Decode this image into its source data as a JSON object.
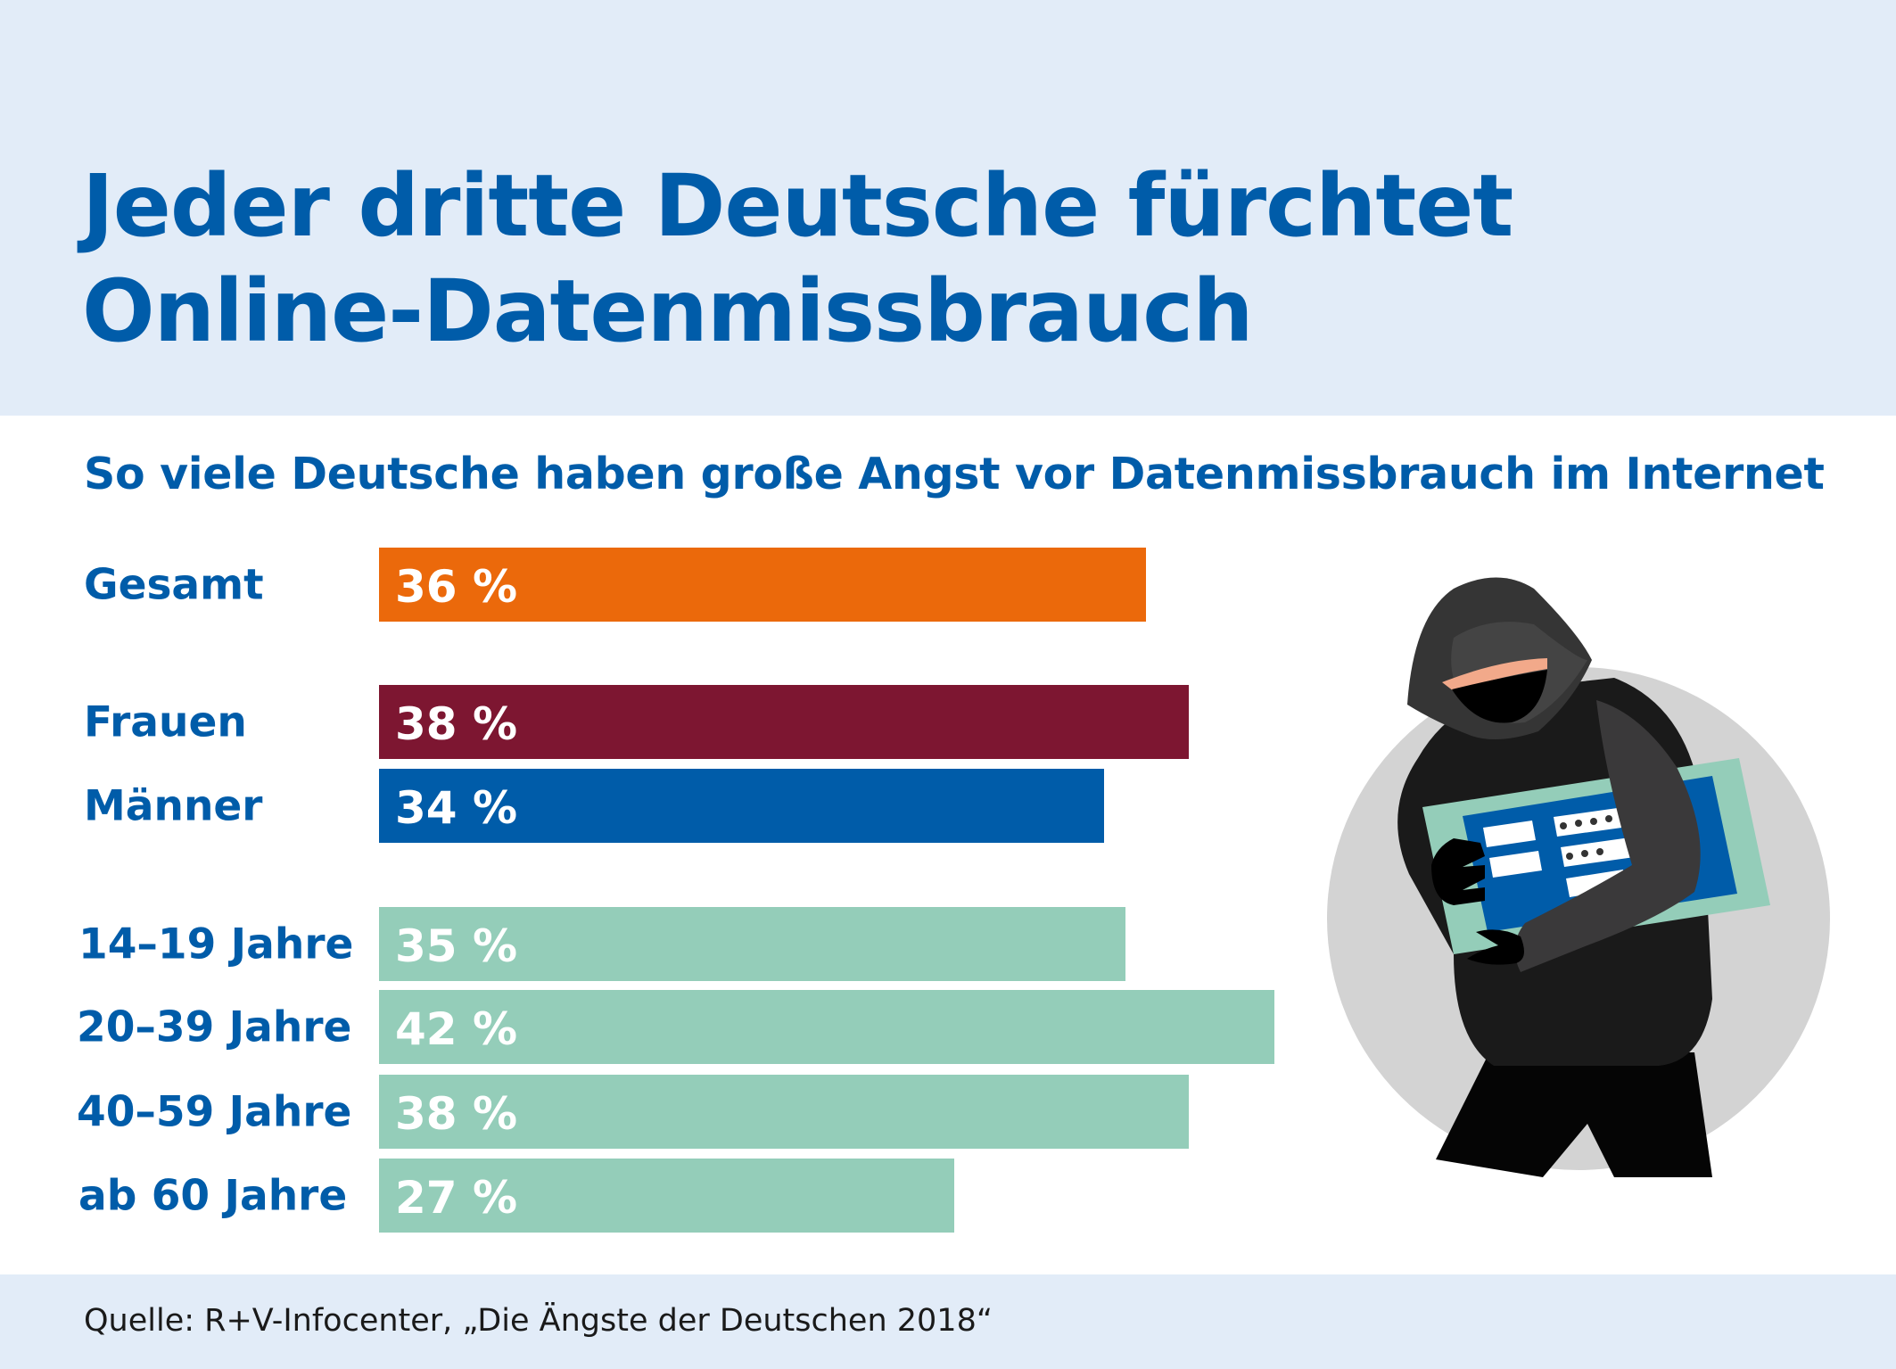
{
  "header": {
    "title_line1": "Jeder dritte Deutsche fürchtet",
    "title_line2": "Online-Datenmissbrauch"
  },
  "footer": {
    "source": "Quelle: R+V-Infocenter, „Die Ängste der Deutschen 2018“"
  },
  "illustration": {
    "description": "hooded-thief-carrying-login-screen-icon"
  },
  "colors": {
    "title": "#005ca9",
    "header_bg": "#e2ecf8",
    "gesamt": "#eb690b",
    "frauen": "#7d1631",
    "maenner": "#005ca9",
    "age": "#94cdb9"
  },
  "chart_data": {
    "type": "bar",
    "orientation": "horizontal",
    "title": "So viele Deutsche haben große Angst vor Datenmissbrauch im Internet",
    "xlabel": "",
    "ylabel": "",
    "unit": "%",
    "grid": false,
    "legend": "none",
    "xlim": [
      0,
      42
    ],
    "categories": [
      "Gesamt",
      "Frauen",
      "Männer",
      "14–19 Jahre",
      "20–39 Jahre",
      "40–59 Jahre",
      "ab 60 Jahre"
    ],
    "values": [
      36,
      38,
      34,
      35,
      42,
      38,
      27
    ],
    "value_labels": [
      "36 %",
      "38 %",
      "34 %",
      "35 %",
      "42 %",
      "38 %",
      "27 %"
    ],
    "groups": [
      "total",
      "gender",
      "gender",
      "age",
      "age",
      "age",
      "age"
    ],
    "bar_colors": [
      "#eb690b",
      "#7d1631",
      "#005ca9",
      "#94cdb9",
      "#94cdb9",
      "#94cdb9",
      "#94cdb9"
    ]
  }
}
